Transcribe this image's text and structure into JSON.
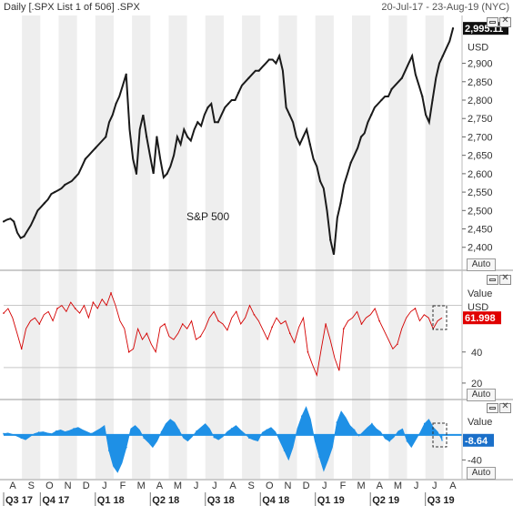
{
  "header": {
    "left_title": "Daily [.SPX List 1 of 506] .SPX",
    "right_range": "20-Jul-17 - 23-Aug-19 (NYC)"
  },
  "buttons": {
    "auto": "Auto",
    "close": "✕"
  },
  "colors": {
    "price_line": "#1a1a1a",
    "rsi_line": "#d40000",
    "rsi_badge": "#e00000",
    "hist_fill": "#1e90e6",
    "hist_badge": "#1a6fc9",
    "shade": "#eeeeee",
    "grid": "#c8c8c8"
  },
  "chart_data": [
    {
      "type": "line",
      "name": "price",
      "annotation": "S&P 500",
      "current_value_label": "2,995.11",
      "unit_label": "USD",
      "ylim": [
        2340,
        3030
      ],
      "yticks": [
        "2,900",
        "2,850",
        "2,800",
        "2,750",
        "2,700",
        "2,650",
        "2,600",
        "2,550",
        "2,500",
        "2,450",
        "2,400"
      ],
      "values": [
        2470,
        2475,
        2478,
        2470,
        2440,
        2425,
        2430,
        2445,
        2460,
        2480,
        2500,
        2510,
        2520,
        2530,
        2545,
        2550,
        2555,
        2560,
        2570,
        2575,
        2580,
        2590,
        2600,
        2620,
        2640,
        2650,
        2660,
        2670,
        2680,
        2690,
        2700,
        2740,
        2760,
        2790,
        2810,
        2840,
        2870,
        2720,
        2640,
        2600,
        2720,
        2760,
        2700,
        2650,
        2600,
        2700,
        2640,
        2590,
        2600,
        2620,
        2650,
        2700,
        2680,
        2720,
        2700,
        2690,
        2720,
        2740,
        2730,
        2760,
        2780,
        2790,
        2740,
        2740,
        2760,
        2780,
        2790,
        2800,
        2800,
        2820,
        2840,
        2850,
        2860,
        2870,
        2880,
        2880,
        2890,
        2900,
        2910,
        2910,
        2900,
        2920,
        2880,
        2780,
        2760,
        2740,
        2700,
        2680,
        2700,
        2720,
        2680,
        2640,
        2620,
        2580,
        2560,
        2500,
        2420,
        2380,
        2480,
        2520,
        2570,
        2600,
        2630,
        2650,
        2670,
        2700,
        2710,
        2740,
        2760,
        2780,
        2790,
        2800,
        2810,
        2810,
        2830,
        2840,
        2850,
        2860,
        2880,
        2900,
        2920,
        2870,
        2840,
        2810,
        2760,
        2740,
        2800,
        2860,
        2900,
        2920,
        2940,
        2960,
        2995
      ]
    },
    {
      "type": "line",
      "name": "oscillator",
      "current_value_label": "61.998",
      "header_label": "Value",
      "unit_label": "USD",
      "ylim": [
        10,
        92
      ],
      "yticks": [
        "40",
        "20"
      ],
      "reference_lines": [
        70,
        30
      ],
      "values": [
        65,
        68,
        62,
        52,
        42,
        55,
        60,
        62,
        58,
        64,
        66,
        60,
        68,
        70,
        66,
        72,
        68,
        65,
        70,
        62,
        72,
        68,
        74,
        70,
        78,
        70,
        60,
        55,
        40,
        42,
        55,
        48,
        52,
        45,
        40,
        56,
        58,
        50,
        48,
        52,
        58,
        55,
        60,
        48,
        50,
        55,
        62,
        66,
        60,
        58,
        54,
        62,
        66,
        58,
        62,
        70,
        64,
        60,
        54,
        48,
        56,
        62,
        58,
        60,
        52,
        46,
        56,
        62,
        40,
        32,
        25,
        42,
        58,
        48,
        36,
        28,
        55,
        60,
        62,
        66,
        58,
        62,
        64,
        68,
        60,
        54,
        48,
        42,
        45,
        55,
        62,
        66,
        68,
        60,
        64,
        62,
        55,
        60,
        62
      ]
    },
    {
      "type": "area",
      "name": "histogram",
      "current_value_label": "-8.64",
      "header_label": "Value",
      "ylim": [
        -70,
        55
      ],
      "yticks": [
        "-40"
      ],
      "values": [
        2,
        3,
        1,
        -2,
        -5,
        -8,
        -3,
        2,
        4,
        5,
        3,
        2,
        6,
        8,
        5,
        7,
        10,
        12,
        8,
        5,
        2,
        6,
        10,
        15,
        -25,
        -50,
        -60,
        -45,
        -20,
        10,
        15,
        8,
        -5,
        -12,
        -20,
        -10,
        5,
        18,
        25,
        20,
        8,
        -5,
        -10,
        -3,
        6,
        12,
        18,
        10,
        -4,
        -8,
        -3,
        5,
        10,
        15,
        8,
        2,
        -5,
        -8,
        -10,
        4,
        8,
        12,
        5,
        -10,
        -25,
        -40,
        -20,
        10,
        30,
        45,
        25,
        -10,
        -35,
        -58,
        -40,
        -20,
        20,
        38,
        28,
        15,
        8,
        -2,
        5,
        12,
        18,
        10,
        5,
        -6,
        -10,
        -4,
        6,
        10,
        -10,
        -20,
        -8,
        4,
        18,
        25,
        12,
        5,
        -8.64
      ]
    },
    {
      "type": "axis",
      "x_months": [
        "A",
        "S",
        "O",
        "N",
        "D",
        "J",
        "F",
        "M",
        "A",
        "M",
        "J",
        "J",
        "A",
        "S",
        "O",
        "N",
        "D",
        "J",
        "F",
        "M",
        "A",
        "M",
        "J",
        "J",
        "A"
      ],
      "x_quarters": [
        "Q3 17",
        "Q4 17",
        "Q1 18",
        "Q2 18",
        "Q3 18",
        "Q4 18",
        "Q1 19",
        "Q2 19",
        "Q3 19"
      ]
    }
  ]
}
